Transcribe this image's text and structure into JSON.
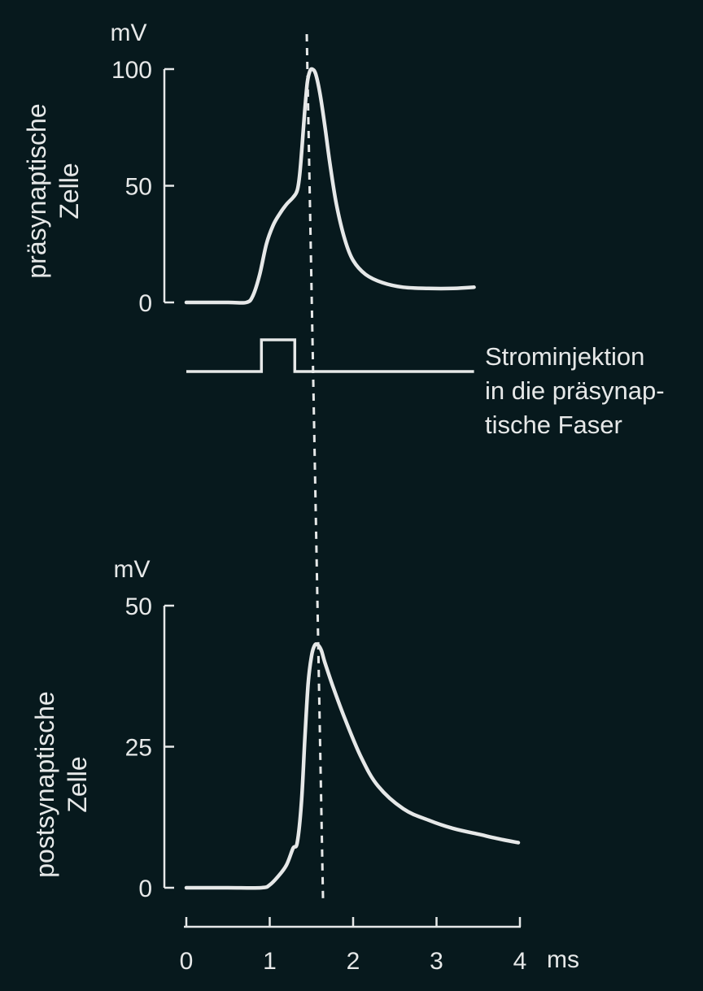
{
  "colors": {
    "background": "#07191d",
    "foreground": "#e6e8e8"
  },
  "chart_data": [
    {
      "type": "line",
      "panel": "top",
      "ylabel_lines": [
        "präsynaptische",
        "Zelle"
      ],
      "yunit": "mV",
      "ylim": [
        0,
        100
      ],
      "yticks": [
        0,
        50,
        100
      ],
      "grid": false,
      "series": [
        {
          "x": [
            0,
            0.5,
            0.72,
            0.8,
            0.88,
            0.96,
            1.04,
            1.12,
            1.2,
            1.28,
            1.33,
            1.36,
            1.39,
            1.42,
            1.45,
            1.48,
            1.51,
            1.55,
            1.6,
            1.66,
            1.72,
            1.8,
            1.9,
            2.0,
            2.15,
            2.35,
            2.6,
            2.9,
            3.2,
            3.45
          ],
          "y": [
            0,
            0,
            0,
            3,
            12,
            25,
            33,
            38,
            42,
            45,
            48,
            55,
            68,
            82,
            94,
            99,
            100,
            98,
            90,
            76,
            60,
            42,
            27,
            18,
            12,
            8.5,
            6.5,
            6,
            6,
            6.5
          ]
        }
      ]
    },
    {
      "type": "line",
      "panel": "stimulus",
      "annotation_lines": [
        "Strominjektion",
        "in die präsynap-",
        "tische Faser"
      ],
      "series": [
        {
          "x": [
            0,
            0.9,
            0.9,
            1.3,
            1.3,
            3.45
          ],
          "level": [
            0,
            0,
            1,
            1,
            0,
            0
          ]
        }
      ]
    },
    {
      "type": "line",
      "panel": "bottom",
      "ylabel_lines": [
        "postsynaptische",
        "Zelle"
      ],
      "yunit": "mV",
      "ylim": [
        0,
        50
      ],
      "yticks": [
        0,
        25,
        50
      ],
      "xticks": [
        0,
        1,
        2,
        3,
        4
      ],
      "xunit": "ms",
      "xlim": [
        0,
        4
      ],
      "grid": false,
      "series": [
        {
          "x": [
            0,
            0.5,
            0.9,
            1.0,
            1.1,
            1.2,
            1.28,
            1.33,
            1.38,
            1.42,
            1.46,
            1.5,
            1.54,
            1.58,
            1.62,
            1.66,
            1.75,
            1.9,
            2.1,
            2.3,
            2.6,
            2.9,
            3.2,
            3.5,
            3.8,
            3.98
          ],
          "y": [
            0,
            0,
            0,
            0.5,
            2,
            4,
            7,
            8,
            15,
            26,
            36,
            41,
            43,
            43,
            42,
            40,
            36,
            30,
            23,
            18,
            14,
            12,
            10.5,
            9.5,
            8.5,
            8
          ]
        }
      ]
    }
  ]
}
